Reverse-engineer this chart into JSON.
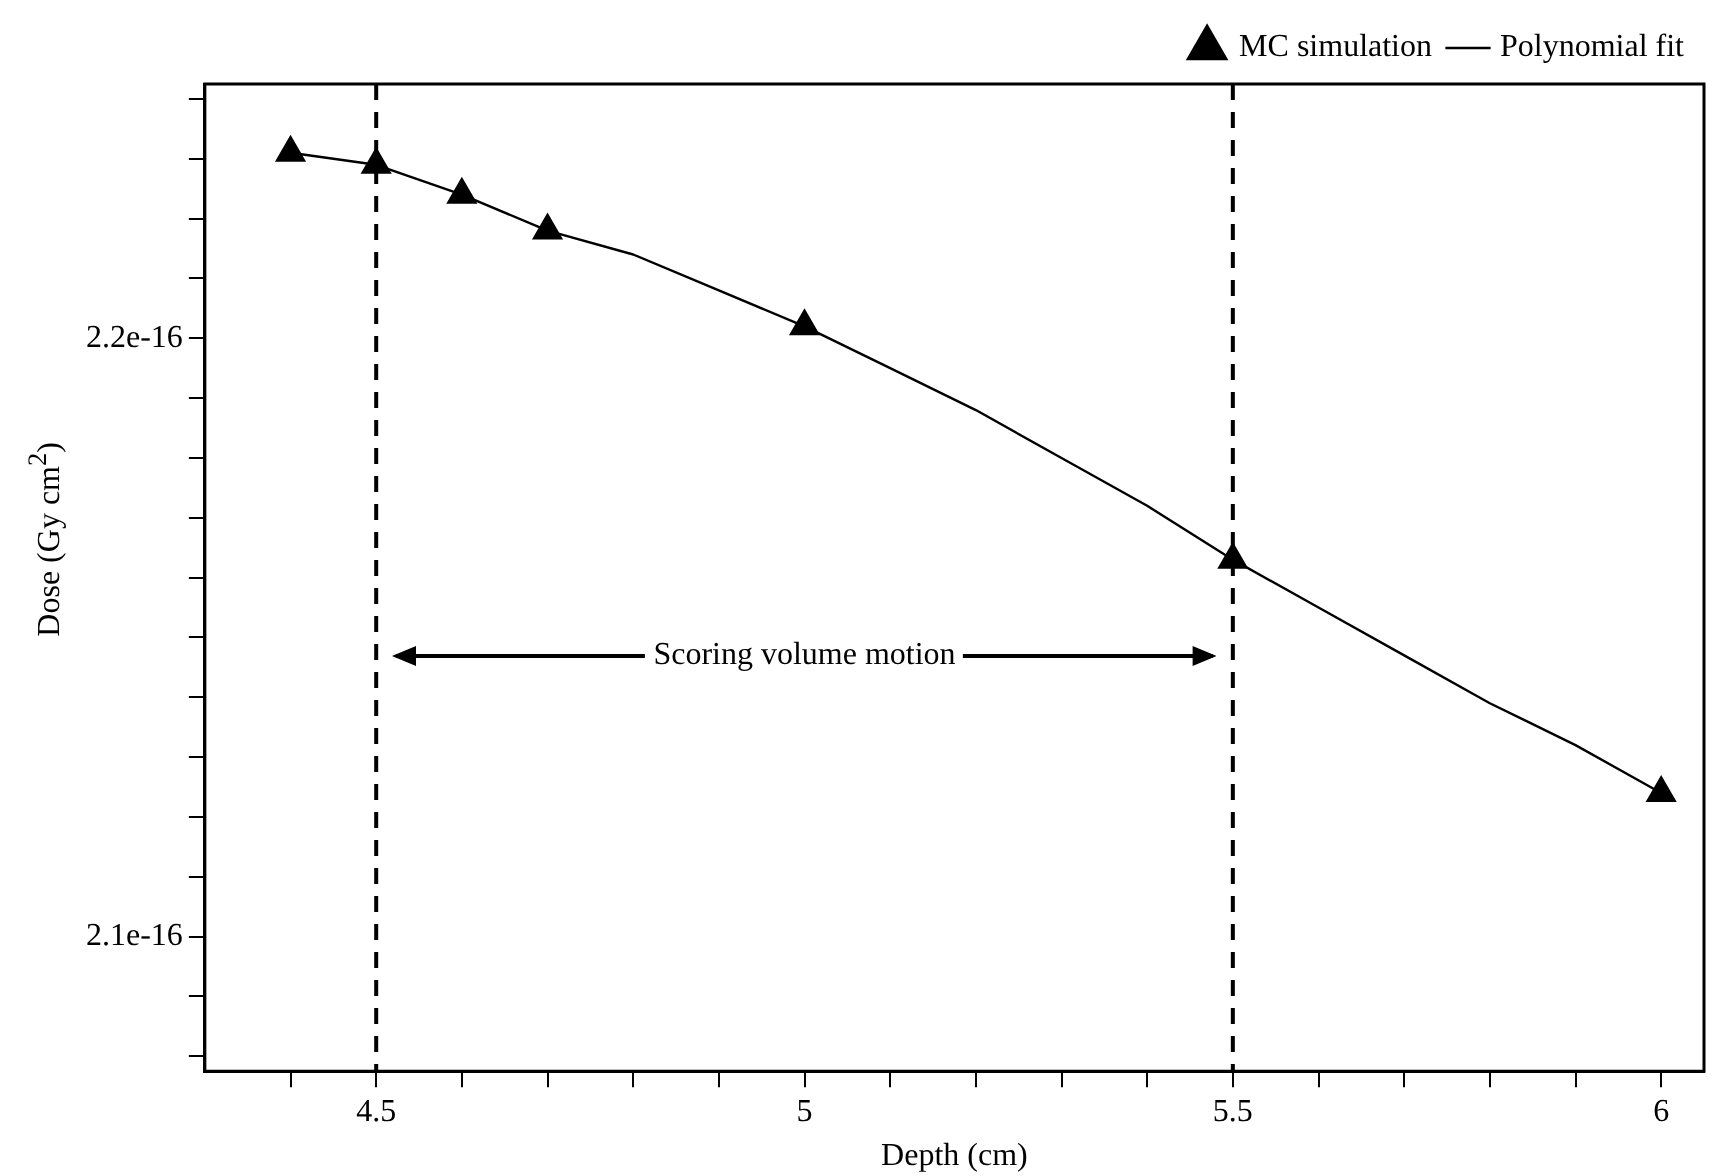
{
  "chart_data": {
    "type": "scatter",
    "xlabel": "Depth (cm)",
    "ylabel": "Dose (Gy cm$^{2}$)",
    "xlim": [
      4.3,
      6.05
    ],
    "ylim": [
      2.0775e-16,
      2.2425e-16
    ],
    "xticks": [
      {
        "value": 4.4,
        "label": null
      },
      4.5,
      {
        "value": 4.6,
        "label": null
      },
      {
        "value": 4.7,
        "label": null
      },
      {
        "value": 4.8,
        "label": null
      },
      {
        "value": 4.9,
        "label": null
      },
      5,
      {
        "value": 5.1,
        "label": null
      },
      {
        "value": 5.2,
        "label": null
      },
      {
        "value": 5.3,
        "label": null
      },
      {
        "value": 5.4,
        "label": null
      },
      5.5,
      {
        "value": 5.6,
        "label": null
      },
      {
        "value": 5.7,
        "label": null
      },
      {
        "value": 5.8,
        "label": null
      },
      {
        "value": 5.9,
        "label": null
      },
      6
    ],
    "yticks": [
      {
        "value": 2.08e-16,
        "label": null
      },
      {
        "value": 2.09e-16,
        "label": null
      },
      2.1e-16,
      {
        "value": 2.11e-16,
        "label": null
      },
      {
        "value": 2.12e-16,
        "label": null
      },
      {
        "value": 2.13e-16,
        "label": null
      },
      {
        "value": 2.14e-16,
        "label": null
      },
      {
        "value": 2.15e-16,
        "label": null
      },
      {
        "value": 2.16e-16,
        "label": null
      },
      {
        "value": 2.17e-16,
        "label": null
      },
      {
        "value": 2.18e-16,
        "label": null
      },
      {
        "value": 2.19e-16,
        "label": null
      },
      2.2e-16,
      {
        "value": 2.21e-16,
        "label": null
      },
      {
        "value": 2.22e-16,
        "label": null
      },
      {
        "value": 2.23e-16,
        "label": null
      },
      {
        "value": 2.24e-16,
        "label": null
      }
    ],
    "grid": false,
    "legend": "top right",
    "series": [
      {
        "name": "MC simulation",
        "marker": "triangle",
        "color": "#000000",
        "x": [
          4.4,
          4.5,
          4.6,
          4.7,
          5.0,
          5.5,
          6.0
        ],
        "values": [
          2.231e-16,
          2.229e-16,
          2.224e-16,
          2.218e-16,
          2.202e-16,
          2.163e-16,
          2.124e-16
        ]
      },
      {
        "name": "Polynomial fit",
        "type": "line",
        "marker": "none",
        "line_style": "solid",
        "color": "#000000",
        "x": [
          4.4,
          4.5,
          4.6,
          4.7,
          4.8,
          4.9,
          5.0,
          5.1,
          5.2,
          5.3,
          5.4,
          5.5,
          5.6,
          5.7,
          5.8,
          5.9,
          6.0
        ],
        "values": [
          2.231e-16,
          2.229e-16,
          2.224e-16,
          2.218e-16,
          2.214e-16,
          2.208e-16,
          2.202e-16,
          2.195e-16,
          2.188e-16,
          2.18e-16,
          2.172e-16,
          2.163e-16,
          2.155e-16,
          2.147e-16,
          2.139e-16,
          2.132e-16,
          2.124e-16
        ]
      }
    ],
    "ref_lines": [
      {
        "axis": "x",
        "value": 4.5,
        "color": "#000000",
        "line_style": "dashed"
      },
      {
        "axis": "x",
        "value": 5.5,
        "color": "#000000",
        "line_style": "dashed"
      }
    ],
    "annotations": [
      "Scoring volume motion"
    ]
  }
}
